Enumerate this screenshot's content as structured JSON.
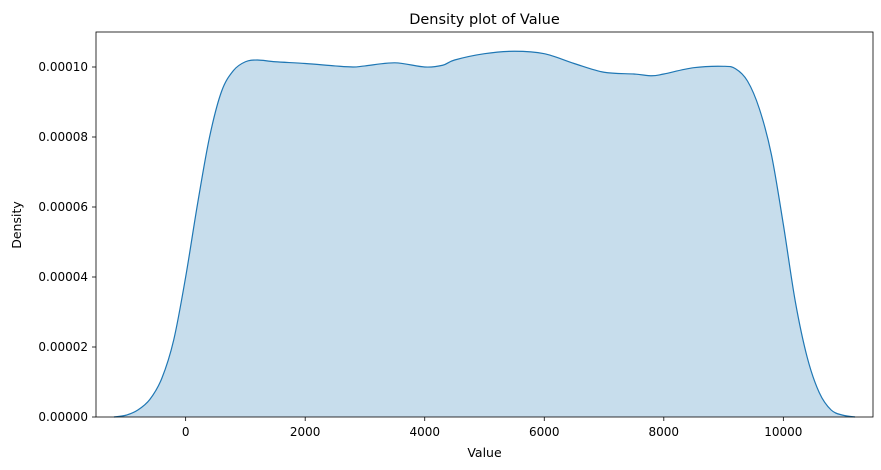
{
  "chart_data": {
    "type": "area",
    "title": "Density plot of Value",
    "xlabel": "Value",
    "ylabel": "Density",
    "xlim": [
      -1500,
      11500
    ],
    "ylim": [
      0,
      0.00011
    ],
    "xticks": [
      0,
      2000,
      4000,
      6000,
      8000,
      10000
    ],
    "xtick_labels": [
      "0",
      "2000",
      "4000",
      "6000",
      "8000",
      "10000"
    ],
    "yticks": [
      0,
      2e-05,
      4e-05,
      6e-05,
      8e-05,
      0.0001
    ],
    "ytick_labels": [
      "0.00000",
      "0.00002",
      "0.00004",
      "0.00006",
      "0.00008",
      "0.00010"
    ],
    "grid": false,
    "legend": "none",
    "colors": {
      "line": "#1f77b4",
      "fill": "#1f77b4",
      "fill_opacity": 0.25
    },
    "series": [
      {
        "x": [
          -1200,
          -1000,
          -800,
          -600,
          -400,
          -200,
          0,
          200,
          400,
          600,
          800,
          1000,
          1200,
          1500,
          2000,
          2500,
          2800,
          3000,
          3500,
          4000,
          4300,
          4500,
          5000,
          5500,
          6000,
          6500,
          7000,
          7500,
          7800,
          8000,
          8500,
          9000,
          9200,
          9400,
          9600,
          9800,
          10000,
          10200,
          10400,
          10600,
          10800,
          11000,
          11200
        ],
        "y": [
          0,
          5e-07,
          2e-06,
          5e-06,
          1.1e-05,
          2.2e-05,
          4e-05,
          6.1e-05,
          8e-05,
          9.3e-05,
          9.9e-05,
          0.0001015,
          0.000102,
          0.0001015,
          0.000101,
          0.0001003,
          0.0001,
          0.0001003,
          0.0001012,
          0.0001,
          0.0001005,
          0.000102,
          0.0001038,
          0.0001045,
          0.0001038,
          0.000101,
          9.85e-05,
          9.8e-05,
          9.75e-05,
          9.8e-05,
          9.98e-05,
          0.0001002,
          9.95e-05,
          9.6e-05,
          8.8e-05,
          7.5e-05,
          5.5e-05,
          3.3e-05,
          1.7e-05,
          7e-06,
          2e-06,
          5e-07,
          0
        ]
      }
    ]
  }
}
